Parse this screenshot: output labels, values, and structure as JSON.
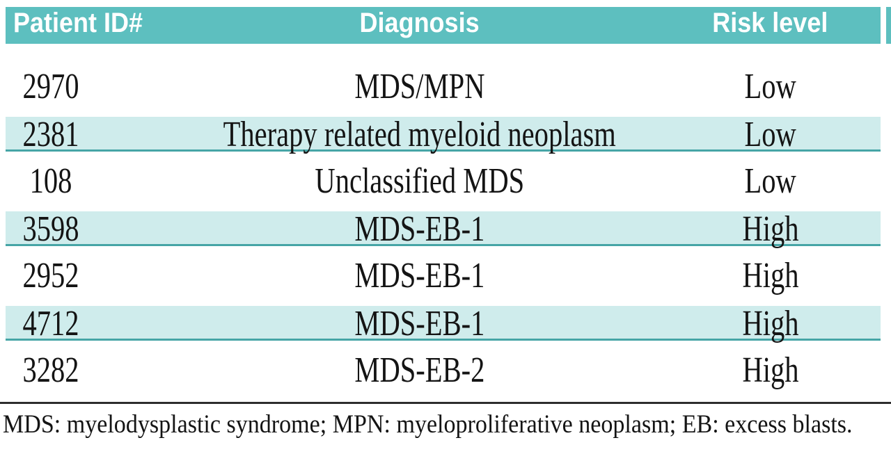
{
  "table": {
    "columns": [
      "Patient ID#",
      "Diagnosis",
      "Risk level"
    ],
    "rows": [
      {
        "patient_id": "2970",
        "diagnosis": "MDS/MPN",
        "risk_level": "Low"
      },
      {
        "patient_id": "2381",
        "diagnosis": "Therapy related myeloid neoplasm",
        "risk_level": "Low"
      },
      {
        "patient_id": "108",
        "diagnosis": "Unclassified MDS",
        "risk_level": "Low"
      },
      {
        "patient_id": "3598",
        "diagnosis": "MDS-EB-1",
        "risk_level": "High"
      },
      {
        "patient_id": "2952",
        "diagnosis": "MDS-EB-1",
        "risk_level": "High"
      },
      {
        "patient_id": "4712",
        "diagnosis": "MDS-EB-1",
        "risk_level": "High"
      },
      {
        "patient_id": "3282",
        "diagnosis": "MDS-EB-2",
        "risk_level": "High"
      }
    ],
    "footnote": "MDS: myelodysplastic syndrome; MPN: myeloproliferative neoplasm; EB: excess blasts.",
    "colors": {
      "header_bg": "#5dbfbf",
      "header_text": "#ffffff",
      "stripe_bg": "#cfecec",
      "stripe_rule": "#46a5a6",
      "body_text": "#141414",
      "divider": "#2d2d2d"
    }
  }
}
